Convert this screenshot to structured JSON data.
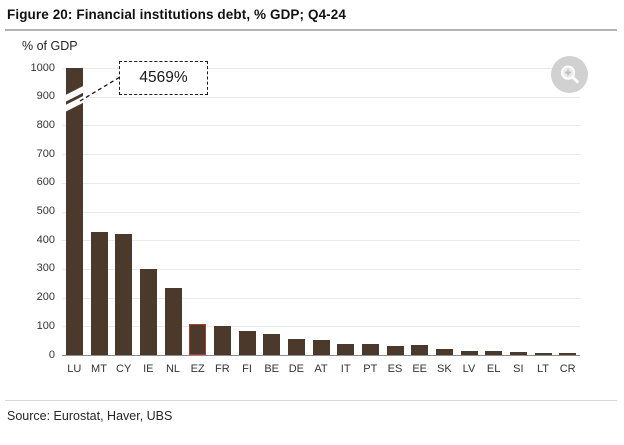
{
  "header": {
    "title": "Figure 20: Financial institutions debt, % GDP; Q4-24"
  },
  "footer": {
    "source": "Source: Eurostat, Haver, UBS"
  },
  "controls": {
    "zoom_button": "magnifier-plus-icon"
  },
  "colors": {
    "bar_fill": "#4b392c",
    "highlight_outline": "#b23a2e",
    "gridline": "#e9e9e9",
    "axis_line": "#8c8c8c",
    "annotation_border": "#1a1a1a"
  },
  "chart_data": {
    "type": "bar",
    "title": "Figure 20: Financial institutions debt, % GDP; Q4-24",
    "units_label": "% of GDP",
    "categories": [
      "LU",
      "MT",
      "CY",
      "IE",
      "NL",
      "EZ",
      "FR",
      "FI",
      "BE",
      "DE",
      "AT",
      "IT",
      "PT",
      "ES",
      "EE",
      "SK",
      "LV",
      "EL",
      "SI",
      "LT",
      "CR"
    ],
    "values": [
      4569,
      430,
      420,
      300,
      235,
      107,
      102,
      85,
      72,
      56,
      51,
      40,
      38,
      33,
      34,
      21,
      14,
      14,
      9,
      4,
      3
    ],
    "ylim": [
      0,
      1000
    ],
    "ytick_step": 100,
    "grid": true,
    "legend": false,
    "axis_break": {
      "category": "LU",
      "actual_value": 4569,
      "label": "4569%",
      "note": "bar clipped at axis top with break marks, value shown in dashed callout"
    },
    "highlighted_category": "EZ"
  }
}
